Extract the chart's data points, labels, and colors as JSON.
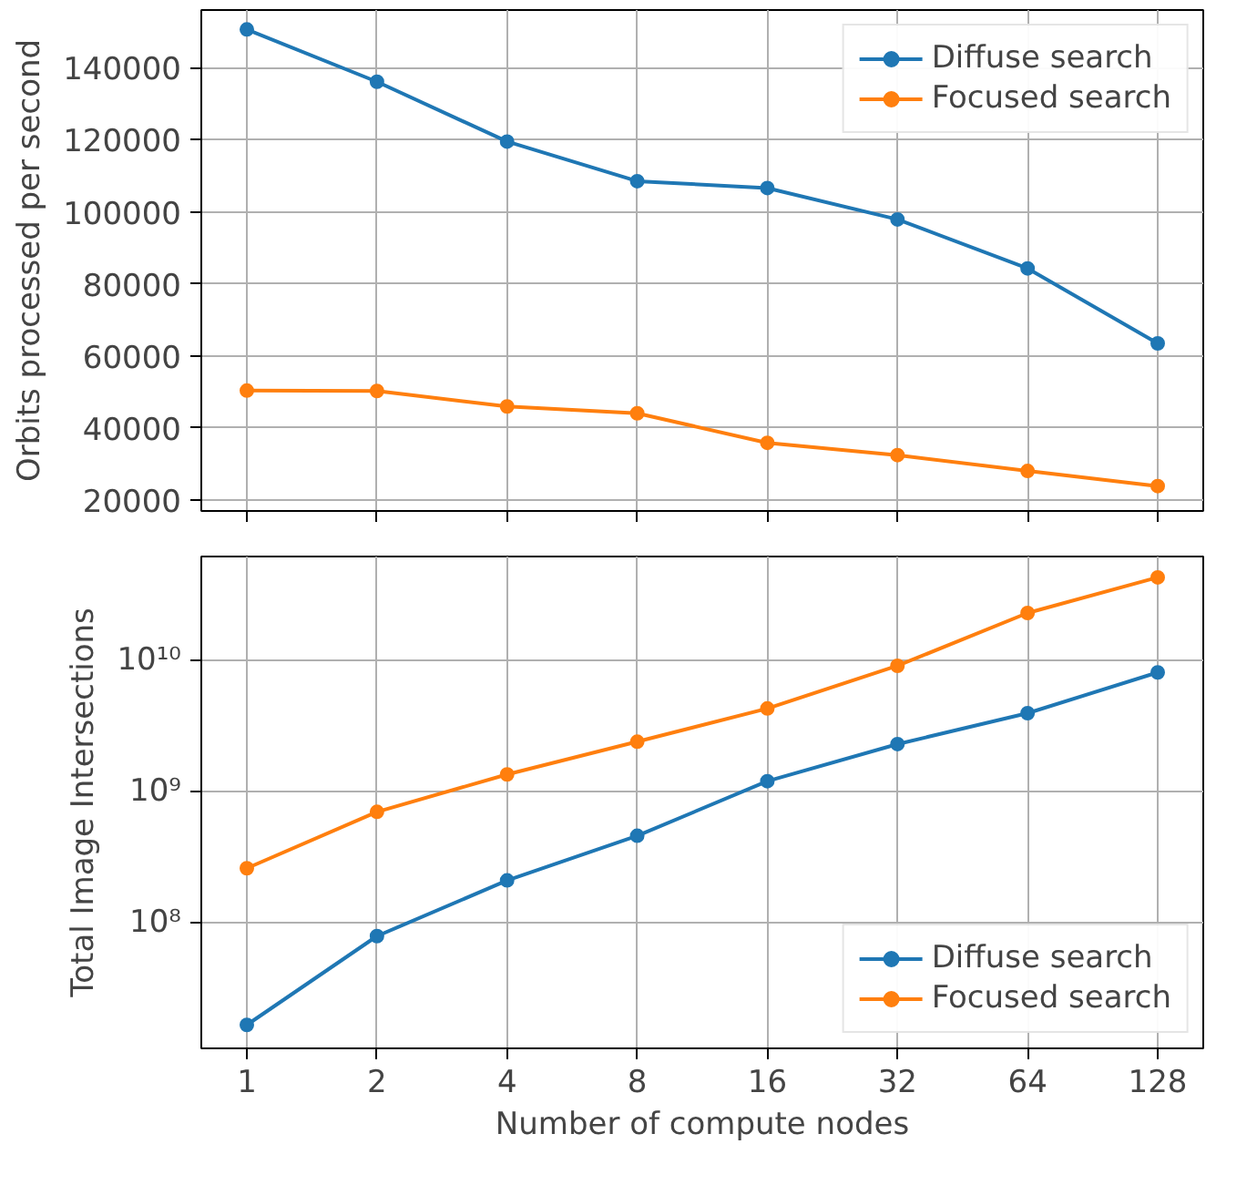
{
  "chart_data": [
    {
      "type": "line",
      "ylabel": "Orbits processed per second",
      "categories": [
        "1",
        "2",
        "4",
        "8",
        "16",
        "32",
        "64",
        "128"
      ],
      "series": [
        {
          "name": "Diffuse search",
          "color": "#1f77b4",
          "values": [
            150600,
            136100,
            119500,
            108500,
            106600,
            97900,
            84300,
            63500
          ]
        },
        {
          "name": "Focused search",
          "color": "#ff7f0e",
          "values": [
            50400,
            50300,
            46000,
            44100,
            35900,
            32500,
            28100,
            23900
          ]
        }
      ],
      "ylim": [
        17000,
        156000
      ],
      "yticks": [
        20000,
        40000,
        60000,
        80000,
        100000,
        120000,
        140000
      ],
      "grid": true,
      "legend": "top right",
      "marker": "circle",
      "line_style": "solid",
      "tick_labels": "y"
    },
    {
      "type": "line",
      "xlabel": "Number of compute nodes",
      "ylabel": "Total Image Intersections",
      "categories": [
        "1",
        "2",
        "4",
        "8",
        "16",
        "32",
        "64",
        "128"
      ],
      "series": [
        {
          "name": "Diffuse search",
          "color": "#1f77b4",
          "values": [
            16600000,
            79000000,
            210000000,
            460000000,
            1200000000,
            2300000000,
            3960000000,
            8100000000
          ]
        },
        {
          "name": "Focused search",
          "color": "#ff7f0e",
          "values": [
            260000000,
            700000000,
            1350000000,
            2400000000,
            4300000000,
            9100000000,
            23000000000,
            43000000000
          ]
        }
      ],
      "log": "y",
      "ylim": [
        11000000,
        62000000000
      ],
      "yticks": [
        {
          "value": 100000000,
          "label": "10⁸"
        },
        {
          "value": 1000000000,
          "label": "10⁹"
        },
        {
          "value": 10000000000,
          "label": "10¹⁰"
        }
      ],
      "grid": true,
      "legend": "bottom right",
      "marker": "circle",
      "line_style": "solid"
    }
  ]
}
